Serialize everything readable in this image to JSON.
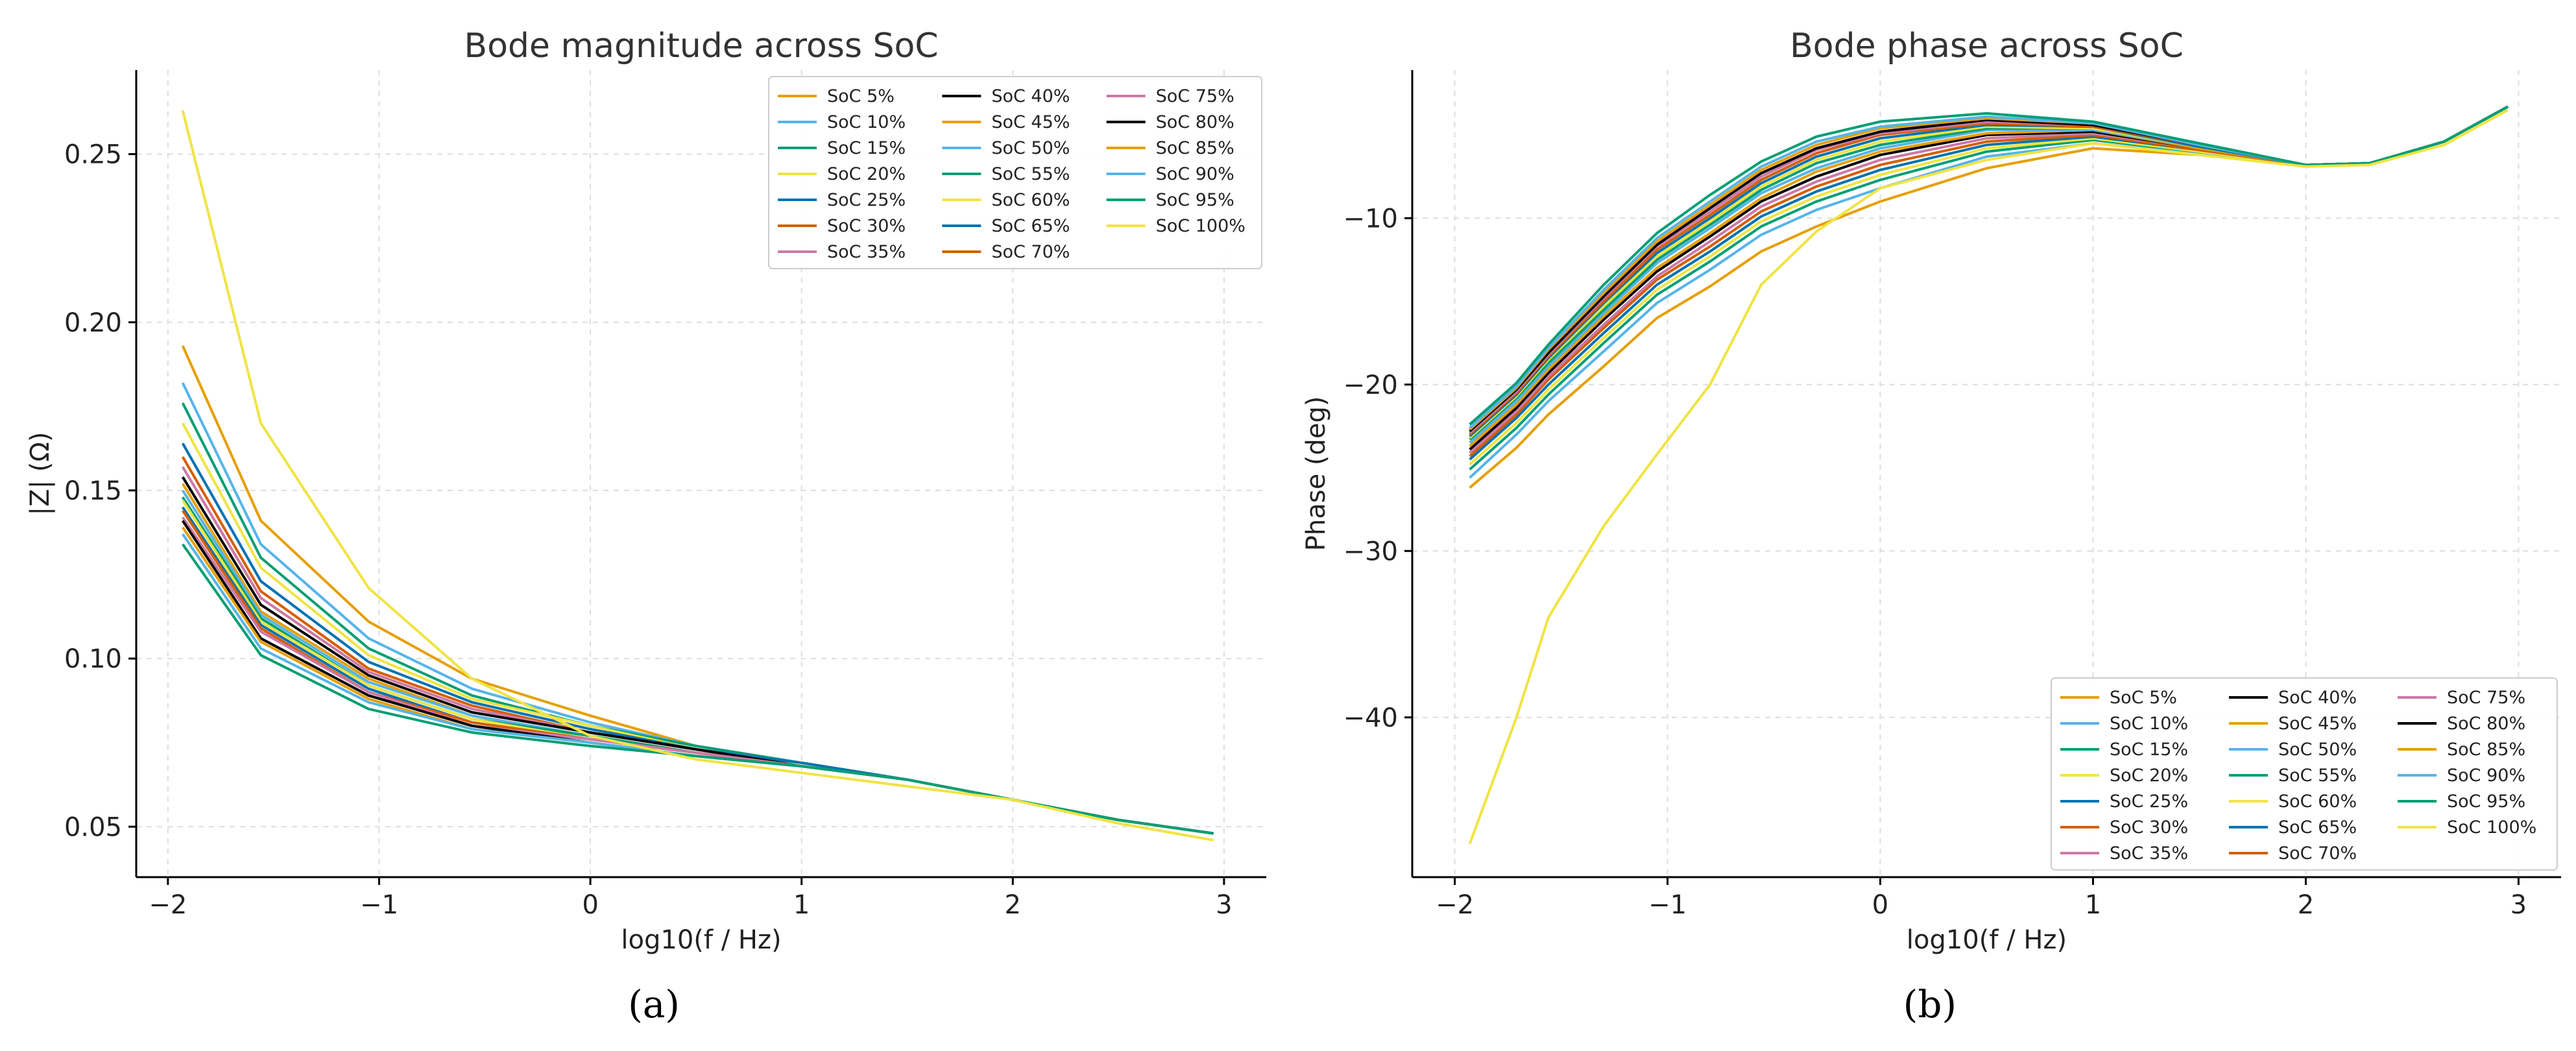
{
  "panel_labels": [
    "(a)",
    "(b)"
  ],
  "chart_data": [
    {
      "type": "line",
      "title": "Bode magnitude across SoC",
      "xlabel": "log10(f / Hz)",
      "ylabel": "|Z| (Ω)",
      "xlim": [
        -2.15,
        3.2
      ],
      "ylim": [
        0.035,
        0.275
      ],
      "xticks": [
        -2,
        -1,
        0,
        1,
        2,
        3
      ],
      "xtick_labels": [
        "−2",
        "−1",
        "0",
        "1",
        "2",
        "3"
      ],
      "yticks": [
        0.05,
        0.1,
        0.15,
        0.2,
        0.25
      ],
      "ytick_labels": [
        "0.05",
        "0.10",
        "0.15",
        "0.20",
        "0.25"
      ],
      "grid": true,
      "legend_position": "top-right",
      "x": [
        -1.93,
        -1.56,
        -1.05,
        -0.56,
        0,
        0.5,
        1,
        1.5,
        2,
        2.5,
        2.95
      ],
      "series": [
        {
          "name": "SoC 5%",
          "color": "#E69F00",
          "values": [
            0.193,
            0.141,
            0.111,
            0.094,
            0.083,
            0.074,
            0.069,
            0.064,
            0.058,
            0.052,
            0.048
          ]
        },
        {
          "name": "SoC 10%",
          "color": "#56B4E9",
          "values": [
            0.182,
            0.134,
            0.106,
            0.091,
            0.081,
            0.074,
            0.069,
            0.064,
            0.058,
            0.052,
            0.048
          ]
        },
        {
          "name": "SoC 15%",
          "color": "#009E73",
          "values": [
            0.176,
            0.13,
            0.103,
            0.089,
            0.08,
            0.074,
            0.069,
            0.064,
            0.058,
            0.052,
            0.048
          ]
        },
        {
          "name": "SoC 20%",
          "color": "#F0E442",
          "values": [
            0.17,
            0.127,
            0.101,
            0.088,
            0.08,
            0.073,
            0.069,
            0.064,
            0.058,
            0.052,
            0.048
          ]
        },
        {
          "name": "SoC 25%",
          "color": "#0072B2",
          "values": [
            0.164,
            0.123,
            0.099,
            0.087,
            0.079,
            0.073,
            0.069,
            0.064,
            0.058,
            0.052,
            0.048
          ]
        },
        {
          "name": "SoC 30%",
          "color": "#D55E00",
          "values": [
            0.16,
            0.12,
            0.097,
            0.086,
            0.078,
            0.073,
            0.068,
            0.064,
            0.058,
            0.052,
            0.048
          ]
        },
        {
          "name": "SoC 35%",
          "color": "#CC79A7",
          "values": [
            0.157,
            0.118,
            0.096,
            0.085,
            0.078,
            0.073,
            0.068,
            0.064,
            0.058,
            0.052,
            0.048
          ]
        },
        {
          "name": "SoC 40%",
          "color": "#000000",
          "values": [
            0.154,
            0.116,
            0.095,
            0.084,
            0.078,
            0.073,
            0.068,
            0.064,
            0.058,
            0.052,
            0.048
          ]
        },
        {
          "name": "SoC 45%",
          "color": "#E69F00",
          "values": [
            0.152,
            0.114,
            0.094,
            0.083,
            0.077,
            0.072,
            0.068,
            0.064,
            0.058,
            0.052,
            0.048
          ]
        },
        {
          "name": "SoC 50%",
          "color": "#56B4E9",
          "values": [
            0.15,
            0.113,
            0.093,
            0.083,
            0.077,
            0.072,
            0.068,
            0.064,
            0.058,
            0.052,
            0.048
          ]
        },
        {
          "name": "SoC 55%",
          "color": "#009E73",
          "values": [
            0.148,
            0.112,
            0.092,
            0.082,
            0.077,
            0.072,
            0.068,
            0.064,
            0.058,
            0.052,
            0.048
          ]
        },
        {
          "name": "SoC 60%",
          "color": "#F0E442",
          "values": [
            0.147,
            0.111,
            0.092,
            0.082,
            0.076,
            0.072,
            0.068,
            0.064,
            0.058,
            0.052,
            0.048
          ]
        },
        {
          "name": "SoC 65%",
          "color": "#0072B2",
          "values": [
            0.145,
            0.11,
            0.091,
            0.081,
            0.076,
            0.072,
            0.068,
            0.064,
            0.058,
            0.052,
            0.048
          ]
        },
        {
          "name": "SoC 70%",
          "color": "#D55E00",
          "values": [
            0.144,
            0.109,
            0.09,
            0.081,
            0.076,
            0.072,
            0.068,
            0.064,
            0.058,
            0.052,
            0.048
          ]
        },
        {
          "name": "SoC 75%",
          "color": "#CC79A7",
          "values": [
            0.142,
            0.108,
            0.09,
            0.08,
            0.076,
            0.072,
            0.068,
            0.064,
            0.058,
            0.052,
            0.048
          ]
        },
        {
          "name": "SoC 80%",
          "color": "#000000",
          "values": [
            0.141,
            0.106,
            0.089,
            0.08,
            0.075,
            0.071,
            0.068,
            0.064,
            0.058,
            0.052,
            0.048
          ]
        },
        {
          "name": "SoC 85%",
          "color": "#E69F00",
          "values": [
            0.139,
            0.105,
            0.088,
            0.079,
            0.075,
            0.071,
            0.068,
            0.064,
            0.058,
            0.052,
            0.048
          ]
        },
        {
          "name": "SoC 90%",
          "color": "#56B4E9",
          "values": [
            0.137,
            0.103,
            0.087,
            0.079,
            0.075,
            0.071,
            0.068,
            0.064,
            0.058,
            0.052,
            0.048
          ]
        },
        {
          "name": "SoC 95%",
          "color": "#009E73",
          "values": [
            0.134,
            0.101,
            0.085,
            0.078,
            0.074,
            0.071,
            0.068,
            0.064,
            0.058,
            0.052,
            0.048
          ]
        },
        {
          "name": "SoC 100%",
          "color": "#F0E442",
          "values": [
            0.263,
            0.17,
            0.121,
            0.094,
            0.077,
            0.07,
            0.066,
            0.062,
            0.058,
            0.051,
            0.046
          ]
        }
      ]
    },
    {
      "type": "line",
      "title": "Bode phase across SoC",
      "xlabel": "log10(f / Hz)",
      "ylabel": "Phase (deg)",
      "xlim": [
        -2.2,
        3.2
      ],
      "ylim": [
        -49.6,
        -1.1
      ],
      "xticks": [
        -2,
        -1,
        0,
        1,
        2,
        3
      ],
      "xtick_labels": [
        "−2",
        "−1",
        "0",
        "1",
        "2",
        "3"
      ],
      "yticks": [
        -10,
        -20,
        -30,
        -40
      ],
      "ytick_labels": [
        "−10",
        "−20",
        "−30",
        "−40"
      ],
      "grid": true,
      "legend_position": "bottom-right",
      "x": [
        -1.93,
        -1.71,
        -1.56,
        -1.3,
        -1.05,
        -0.8,
        -0.56,
        -0.3,
        0,
        0.5,
        1,
        1.5,
        2,
        2.3,
        2.65,
        2.95
      ],
      "series": [
        {
          "name": "SoC 5%",
          "color": "#E69F00",
          "values": [
            -26.2,
            -23.8,
            -21.8,
            -18.9,
            -16.0,
            -14.1,
            -12.0,
            -10.5,
            -9.0,
            -7.0,
            -5.8,
            -6.2,
            -6.8,
            -6.7,
            -5.4,
            -3.3
          ]
        },
        {
          "name": "SoC 10%",
          "color": "#56B4E9",
          "values": [
            -25.6,
            -23.0,
            -21.0,
            -18.0,
            -15.1,
            -13.1,
            -11.0,
            -9.5,
            -8.2,
            -6.3,
            -5.5,
            -6.1,
            -6.8,
            -6.7,
            -5.4,
            -3.3
          ]
        },
        {
          "name": "SoC 15%",
          "color": "#009E73",
          "values": [
            -25.1,
            -22.6,
            -20.6,
            -17.5,
            -14.6,
            -12.6,
            -10.5,
            -9.0,
            -7.7,
            -6.0,
            -5.3,
            -6.0,
            -6.8,
            -6.7,
            -5.4,
            -3.3
          ]
        },
        {
          "name": "SoC 20%",
          "color": "#F0E442",
          "values": [
            -24.8,
            -22.3,
            -20.3,
            -17.2,
            -14.3,
            -12.3,
            -10.2,
            -8.7,
            -7.4,
            -5.8,
            -5.2,
            -6.0,
            -6.8,
            -6.7,
            -5.4,
            -3.3
          ]
        },
        {
          "name": "SoC 25%",
          "color": "#0072B2",
          "values": [
            -24.5,
            -22.0,
            -20.0,
            -16.9,
            -14.0,
            -12.0,
            -9.9,
            -8.4,
            -7.1,
            -5.6,
            -5.1,
            -5.9,
            -6.8,
            -6.7,
            -5.4,
            -3.3
          ]
        },
        {
          "name": "SoC 30%",
          "color": "#D55E00",
          "values": [
            -24.3,
            -21.8,
            -19.7,
            -16.6,
            -13.7,
            -11.7,
            -9.6,
            -8.1,
            -6.8,
            -5.4,
            -5.0,
            -5.9,
            -6.8,
            -6.7,
            -5.4,
            -3.3
          ]
        },
        {
          "name": "SoC 35%",
          "color": "#CC79A7",
          "values": [
            -24.1,
            -21.6,
            -19.5,
            -16.4,
            -13.5,
            -11.4,
            -9.3,
            -7.8,
            -6.5,
            -5.2,
            -4.9,
            -5.8,
            -6.8,
            -6.7,
            -5.4,
            -3.3
          ]
        },
        {
          "name": "SoC 40%",
          "color": "#000000",
          "values": [
            -23.9,
            -21.4,
            -19.3,
            -16.1,
            -13.2,
            -11.1,
            -9.0,
            -7.5,
            -6.2,
            -5.0,
            -4.8,
            -5.8,
            -6.8,
            -6.7,
            -5.4,
            -3.3
          ]
        },
        {
          "name": "SoC 45%",
          "color": "#E69F00",
          "values": [
            -23.7,
            -21.2,
            -19.1,
            -15.9,
            -13.0,
            -10.9,
            -8.8,
            -7.2,
            -6.0,
            -4.9,
            -4.7,
            -5.8,
            -6.8,
            -6.7,
            -5.4,
            -3.3
          ]
        },
        {
          "name": "SoC 50%",
          "color": "#56B4E9",
          "values": [
            -23.5,
            -21.0,
            -18.9,
            -15.7,
            -12.7,
            -10.6,
            -8.5,
            -7.0,
            -5.8,
            -4.7,
            -4.7,
            -5.7,
            -6.8,
            -6.7,
            -5.4,
            -3.3
          ]
        },
        {
          "name": "SoC 55%",
          "color": "#009E73",
          "values": [
            -23.3,
            -20.8,
            -18.7,
            -15.5,
            -12.5,
            -10.4,
            -8.3,
            -6.7,
            -5.6,
            -4.6,
            -4.6,
            -5.7,
            -6.8,
            -6.7,
            -5.4,
            -3.3
          ]
        },
        {
          "name": "SoC 60%",
          "color": "#F0E442",
          "values": [
            -23.2,
            -20.7,
            -18.5,
            -15.3,
            -12.3,
            -10.2,
            -8.1,
            -6.5,
            -5.4,
            -4.5,
            -4.6,
            -5.7,
            -6.8,
            -6.7,
            -5.4,
            -3.3
          ]
        },
        {
          "name": "SoC 65%",
          "color": "#0072B2",
          "values": [
            -23.1,
            -20.6,
            -18.4,
            -15.1,
            -12.1,
            -10.0,
            -7.9,
            -6.3,
            -5.2,
            -4.4,
            -4.5,
            -5.7,
            -6.8,
            -6.7,
            -5.4,
            -3.3
          ]
        },
        {
          "name": "SoC 70%",
          "color": "#D55E00",
          "values": [
            -23.0,
            -20.5,
            -18.3,
            -15.0,
            -11.9,
            -9.8,
            -7.7,
            -6.1,
            -5.0,
            -4.3,
            -4.5,
            -5.6,
            -6.8,
            -6.7,
            -5.4,
            -3.3
          ]
        },
        {
          "name": "SoC 75%",
          "color": "#CC79A7",
          "values": [
            -22.9,
            -20.4,
            -18.2,
            -14.8,
            -11.7,
            -9.6,
            -7.5,
            -5.9,
            -4.9,
            -4.2,
            -4.4,
            -5.6,
            -6.8,
            -6.7,
            -5.4,
            -3.3
          ]
        },
        {
          "name": "SoC 80%",
          "color": "#000000",
          "values": [
            -22.8,
            -20.3,
            -18.1,
            -14.7,
            -11.6,
            -9.4,
            -7.3,
            -5.8,
            -4.8,
            -4.1,
            -4.4,
            -5.6,
            -6.8,
            -6.7,
            -5.4,
            -3.3
          ]
        },
        {
          "name": "SoC 85%",
          "color": "#E69F00",
          "values": [
            -22.7,
            -20.2,
            -17.9,
            -14.5,
            -11.4,
            -9.2,
            -7.1,
            -5.6,
            -4.6,
            -4.0,
            -4.3,
            -5.6,
            -6.8,
            -6.7,
            -5.4,
            -3.3
          ]
        },
        {
          "name": "SoC 90%",
          "color": "#56B4E9",
          "values": [
            -22.6,
            -20.1,
            -17.8,
            -14.3,
            -11.2,
            -9.0,
            -6.9,
            -5.4,
            -4.5,
            -3.9,
            -4.3,
            -5.6,
            -6.8,
            -6.7,
            -5.4,
            -3.3
          ]
        },
        {
          "name": "SoC 95%",
          "color": "#009E73",
          "values": [
            -22.4,
            -19.9,
            -17.6,
            -14.0,
            -10.9,
            -8.6,
            -6.6,
            -5.1,
            -4.2,
            -3.7,
            -4.2,
            -5.5,
            -6.8,
            -6.7,
            -5.4,
            -3.3
          ]
        },
        {
          "name": "SoC 100%",
          "color": "#F0E442",
          "values": [
            -47.6,
            -40.0,
            -34.0,
            -28.5,
            -24.2,
            -20.0,
            -14.0,
            -10.8,
            -8.2,
            -6.5,
            -5.5,
            -6.2,
            -6.9,
            -6.8,
            -5.6,
            -3.5
          ]
        }
      ]
    }
  ]
}
